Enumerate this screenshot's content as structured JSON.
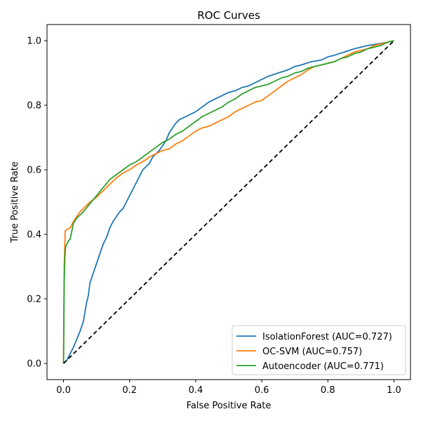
{
  "chart_data": {
    "type": "line",
    "title": "ROC Curves",
    "xlabel": "False Positive Rate",
    "ylabel": "True Positive Rate",
    "xlim": [
      -0.05,
      1.05
    ],
    "ylim": [
      -0.05,
      1.05
    ],
    "xticks": [
      0.0,
      0.2,
      0.4,
      0.6,
      0.8,
      1.0
    ],
    "yticks": [
      0.0,
      0.2,
      0.4,
      0.6,
      0.8,
      1.0
    ],
    "xtick_labels": [
      "0.0",
      "0.2",
      "0.4",
      "0.6",
      "0.8",
      "1.0"
    ],
    "ytick_labels": [
      "0.0",
      "0.2",
      "0.4",
      "0.6",
      "0.8",
      "1.0"
    ],
    "grid": false,
    "legend_position": "lower-right",
    "series": [
      {
        "name": "IsolationForest (AUC=0.727)",
        "color": "#1f77b4",
        "x": [
          0.0,
          0.01,
          0.02,
          0.03,
          0.04,
          0.05,
          0.06,
          0.065,
          0.07,
          0.075,
          0.08,
          0.09,
          0.1,
          0.11,
          0.12,
          0.13,
          0.14,
          0.15,
          0.16,
          0.17,
          0.18,
          0.19,
          0.2,
          0.21,
          0.22,
          0.23,
          0.24,
          0.25,
          0.26,
          0.27,
          0.28,
          0.29,
          0.3,
          0.31,
          0.32,
          0.33,
          0.34,
          0.35,
          0.36,
          0.38,
          0.4,
          0.42,
          0.44,
          0.46,
          0.48,
          0.5,
          0.52,
          0.54,
          0.56,
          0.58,
          0.6,
          0.62,
          0.65,
          0.68,
          0.7,
          0.72,
          0.75,
          0.78,
          0.8,
          0.82,
          0.85,
          0.88,
          0.9,
          0.92,
          0.95,
          0.98,
          1.0
        ],
        "y": [
          0.0,
          0.01,
          0.03,
          0.05,
          0.075,
          0.1,
          0.13,
          0.16,
          0.19,
          0.21,
          0.25,
          0.28,
          0.31,
          0.34,
          0.37,
          0.39,
          0.42,
          0.44,
          0.455,
          0.47,
          0.48,
          0.5,
          0.52,
          0.54,
          0.56,
          0.58,
          0.6,
          0.61,
          0.62,
          0.64,
          0.65,
          0.66,
          0.675,
          0.69,
          0.715,
          0.73,
          0.745,
          0.755,
          0.76,
          0.77,
          0.78,
          0.795,
          0.81,
          0.82,
          0.83,
          0.84,
          0.845,
          0.855,
          0.86,
          0.87,
          0.88,
          0.89,
          0.9,
          0.91,
          0.92,
          0.925,
          0.935,
          0.94,
          0.95,
          0.955,
          0.965,
          0.975,
          0.98,
          0.985,
          0.99,
          0.995,
          1.0
        ]
      },
      {
        "name": "OC-SVM (AUC=0.757)",
        "color": "#ff7f0e",
        "x": [
          0.0,
          0.002,
          0.004,
          0.005,
          0.01,
          0.02,
          0.03,
          0.04,
          0.05,
          0.06,
          0.07,
          0.08,
          0.1,
          0.12,
          0.14,
          0.16,
          0.18,
          0.2,
          0.22,
          0.24,
          0.26,
          0.28,
          0.3,
          0.32,
          0.34,
          0.36,
          0.38,
          0.4,
          0.42,
          0.44,
          0.46,
          0.48,
          0.5,
          0.52,
          0.54,
          0.56,
          0.58,
          0.6,
          0.62,
          0.64,
          0.66,
          0.68,
          0.7,
          0.72,
          0.74,
          0.76,
          0.78,
          0.8,
          0.82,
          0.84,
          0.86,
          0.88,
          0.9,
          0.92,
          0.94,
          0.96,
          0.98,
          1.0
        ],
        "y": [
          0.0,
          0.3,
          0.37,
          0.41,
          0.415,
          0.42,
          0.44,
          0.455,
          0.47,
          0.48,
          0.49,
          0.5,
          0.515,
          0.535,
          0.555,
          0.575,
          0.59,
          0.6,
          0.615,
          0.625,
          0.64,
          0.65,
          0.66,
          0.665,
          0.68,
          0.69,
          0.705,
          0.72,
          0.73,
          0.735,
          0.745,
          0.755,
          0.765,
          0.78,
          0.79,
          0.8,
          0.81,
          0.815,
          0.83,
          0.845,
          0.86,
          0.875,
          0.885,
          0.895,
          0.91,
          0.92,
          0.925,
          0.93,
          0.935,
          0.945,
          0.955,
          0.965,
          0.97,
          0.975,
          0.985,
          0.99,
          0.995,
          1.0
        ]
      },
      {
        "name": "Autoencoder (AUC=0.771)",
        "color": "#2ca02c",
        "x": [
          0.0,
          0.002,
          0.004,
          0.006,
          0.01,
          0.015,
          0.02,
          0.025,
          0.03,
          0.04,
          0.05,
          0.06,
          0.08,
          0.1,
          0.12,
          0.14,
          0.16,
          0.18,
          0.2,
          0.22,
          0.24,
          0.26,
          0.28,
          0.3,
          0.32,
          0.34,
          0.36,
          0.38,
          0.4,
          0.42,
          0.44,
          0.46,
          0.48,
          0.5,
          0.52,
          0.54,
          0.56,
          0.58,
          0.6,
          0.62,
          0.64,
          0.66,
          0.68,
          0.7,
          0.72,
          0.74,
          0.76,
          0.78,
          0.8,
          0.82,
          0.84,
          0.86,
          0.88,
          0.9,
          0.92,
          0.94,
          0.96,
          0.98,
          1.0
        ],
        "y": [
          0.0,
          0.25,
          0.33,
          0.36,
          0.37,
          0.38,
          0.385,
          0.41,
          0.435,
          0.45,
          0.46,
          0.47,
          0.495,
          0.52,
          0.545,
          0.57,
          0.585,
          0.6,
          0.615,
          0.625,
          0.64,
          0.655,
          0.67,
          0.685,
          0.695,
          0.71,
          0.72,
          0.735,
          0.75,
          0.765,
          0.775,
          0.785,
          0.795,
          0.81,
          0.82,
          0.835,
          0.845,
          0.855,
          0.86,
          0.865,
          0.875,
          0.885,
          0.89,
          0.9,
          0.905,
          0.915,
          0.92,
          0.925,
          0.93,
          0.935,
          0.945,
          0.95,
          0.96,
          0.965,
          0.975,
          0.98,
          0.985,
          0.995,
          1.0
        ]
      }
    ],
    "reference_line": {
      "style": "dashed",
      "color": "#000000",
      "x": [
        0.0,
        1.0
      ],
      "y": [
        0.0,
        1.0
      ]
    }
  }
}
